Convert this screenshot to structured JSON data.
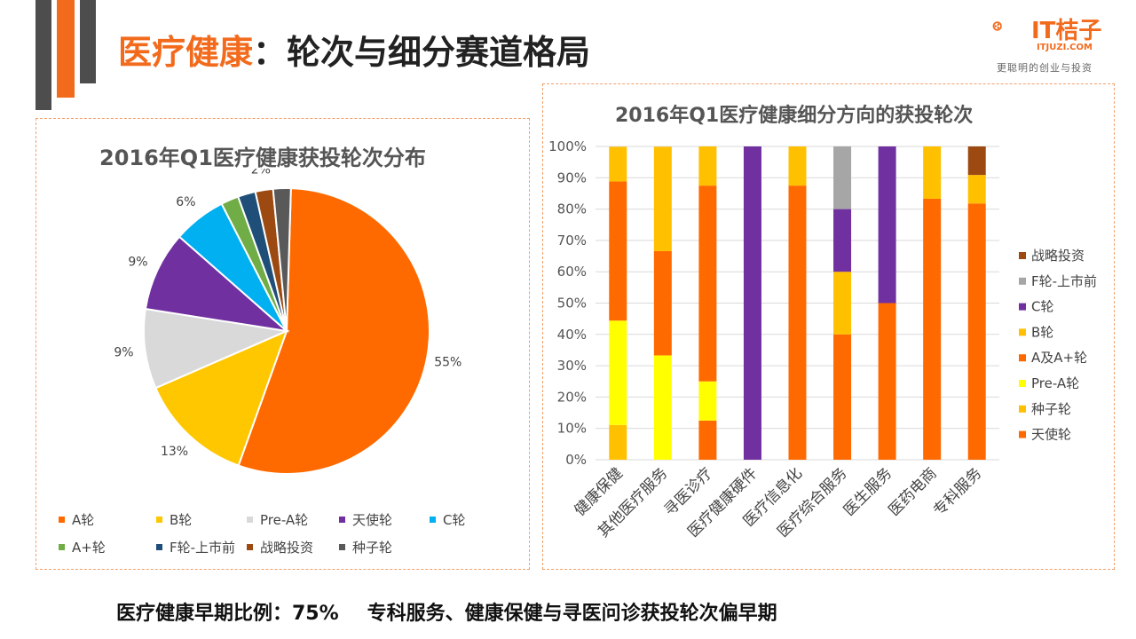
{
  "header": {
    "title_main": "医疗健康",
    "title_rest": "：轮次与细分赛道格局"
  },
  "logo": {
    "name": "IT桔子",
    "url": "ITJUZI.COM",
    "slogan": "更聪明的创业与投资",
    "brand_color": "#f26b1d"
  },
  "footer": {
    "left": "医疗健康早期比例：75%",
    "right": "专科服务、健康保健与寻医问诊获投轮次偏早期"
  },
  "chart_data": [
    {
      "type": "pie",
      "title": "2016年Q1医疗健康获投轮次分布",
      "categories": [
        "A轮",
        "B轮",
        "Pre-A轮",
        "天使轮",
        "C轮",
        "A+轮",
        "F轮-上市前",
        "战略投资",
        "种子轮"
      ],
      "values": [
        55,
        13,
        9,
        9,
        6,
        2,
        2,
        2,
        2
      ],
      "labels": [
        "55%",
        "13%",
        "9%",
        "9%",
        "6%",
        "",
        "",
        "2%",
        ""
      ],
      "colors": [
        "#ff6a00",
        "#ffc700",
        "#d9d9d9",
        "#7030a0",
        "#00b0f0",
        "#70ad47",
        "#1f4e79",
        "#9c4a12",
        "#595959"
      ]
    },
    {
      "type": "bar",
      "stacked": "100%",
      "title": "2016年Q1医疗健康细分方向的获投轮次",
      "categories": [
        "健康保健",
        "其他医疗服务",
        "寻医诊疗",
        "医疗健康硬件",
        "医疗信息化",
        "医疗综合服务",
        "医生服务",
        "医药电商",
        "专科服务"
      ],
      "yticks": [
        "0%",
        "10%",
        "20%",
        "30%",
        "40%",
        "50%",
        "60%",
        "70%",
        "80%",
        "90%",
        "100%"
      ],
      "ylim": [
        0,
        100
      ],
      "series": [
        {
          "name": "天使轮",
          "color": "#ff6a00",
          "values": [
            0,
            0,
            12.5,
            0,
            87.5,
            40,
            50,
            83.3,
            81.8
          ]
        },
        {
          "name": "种子轮",
          "color": "#ffc000",
          "values": [
            11.1,
            0,
            0,
            0,
            0,
            0,
            0,
            0,
            0
          ]
        },
        {
          "name": "Pre-A轮",
          "color": "#ffff00",
          "values": [
            33.3,
            33.3,
            12.5,
            0,
            0,
            0,
            0,
            0,
            0
          ]
        },
        {
          "name": "A及A+轮",
          "color": "#ff6a00",
          "values": [
            44.4,
            33.3,
            62.5,
            0,
            0,
            0,
            0,
            0,
            0
          ]
        },
        {
          "name": "B轮",
          "color": "#ffc000",
          "values": [
            11.1,
            33.3,
            12.5,
            0,
            12.5,
            20,
            0,
            16.7,
            9.1
          ]
        },
        {
          "name": "C轮",
          "color": "#7030a0",
          "values": [
            0,
            0,
            0,
            100,
            0,
            20,
            50,
            0,
            0
          ]
        },
        {
          "name": "F轮-上市前",
          "color": "#a6a6a6",
          "values": [
            0,
            0,
            0,
            0,
            0,
            20,
            0,
            0,
            0
          ]
        },
        {
          "name": "战略投资",
          "color": "#9c4a12",
          "values": [
            0,
            0,
            0,
            0,
            0,
            0,
            0,
            0,
            9.1
          ]
        }
      ]
    }
  ]
}
